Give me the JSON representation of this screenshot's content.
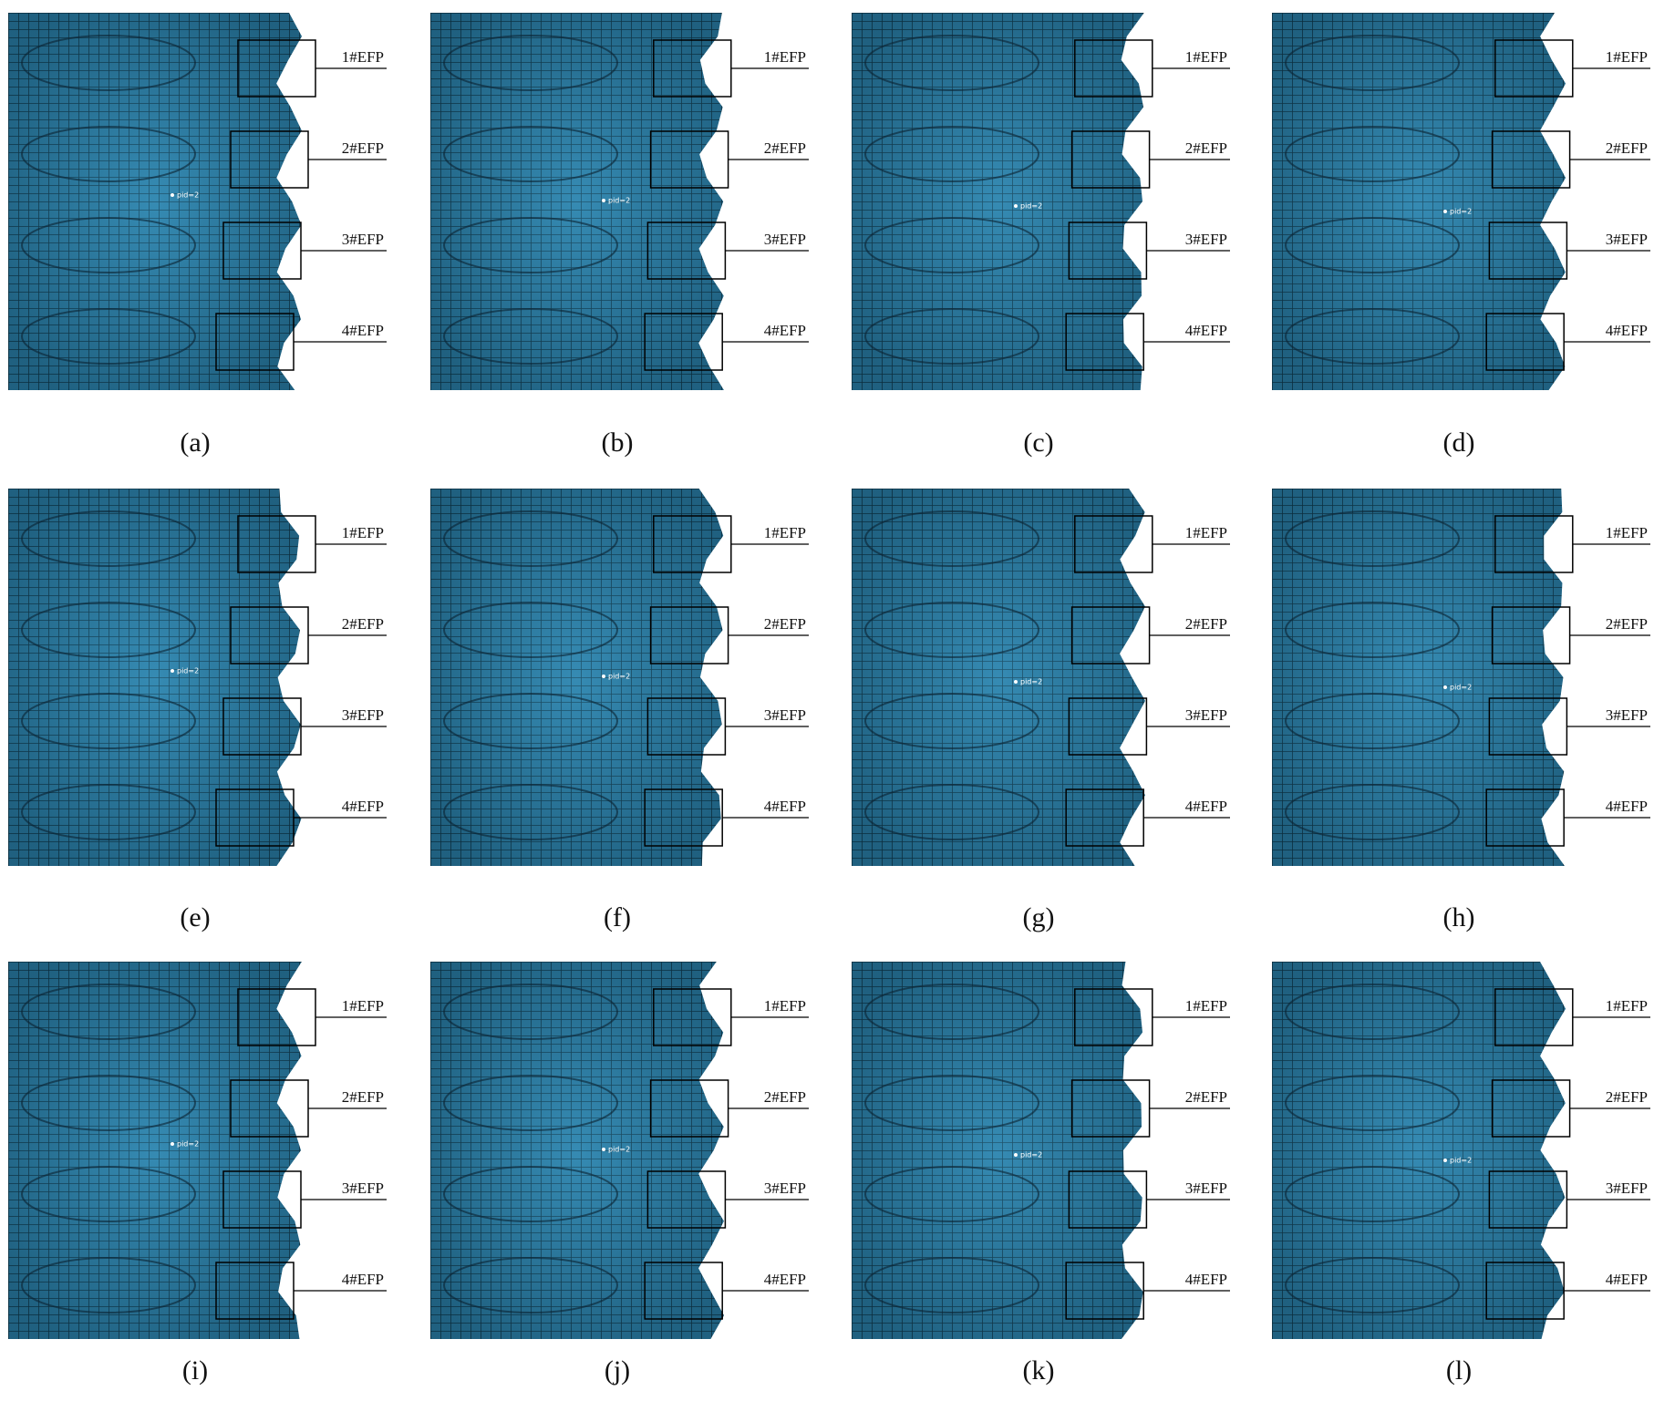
{
  "panels": [
    {
      "caption": "(a)",
      "labels": [
        "1#EFP",
        "2#EFP",
        "3#EFP",
        "4#EFP"
      ],
      "marker": "pid=2"
    },
    {
      "caption": "(b)",
      "labels": [
        "1#EFP",
        "2#EFP",
        "3#EFP",
        "4#EFP"
      ],
      "marker": "pid=2"
    },
    {
      "caption": "(c)",
      "labels": [
        "1#EFP",
        "2#EFP",
        "3#EFP",
        "4#EFP"
      ],
      "marker": "pid=2"
    },
    {
      "caption": "(d)",
      "labels": [
        "1#EFP",
        "2#EFP",
        "3#EFP",
        "4#EFP"
      ],
      "marker": "pid=2"
    },
    {
      "caption": "(e)",
      "labels": [
        "1#EFP",
        "2#EFP",
        "3#EFP",
        "4#EFP"
      ],
      "marker": "pid=2"
    },
    {
      "caption": "(f)",
      "labels": [
        "1#EFP",
        "2#EFP",
        "3#EFP",
        "4#EFP"
      ],
      "marker": "pid=2"
    },
    {
      "caption": "(g)",
      "labels": [
        "1#EFP",
        "2#EFP",
        "3#EFP",
        "4#EFP"
      ],
      "marker": "pid=2"
    },
    {
      "caption": "(h)",
      "labels": [
        "1#EFP",
        "2#EFP",
        "3#EFP",
        "4#EFP"
      ],
      "marker": "pid=2"
    },
    {
      "caption": "(i)",
      "labels": [
        "1#EFP",
        "2#EFP",
        "3#EFP",
        "4#EFP"
      ],
      "marker": "pid=2"
    },
    {
      "caption": "(j)",
      "labels": [
        "1#EFP",
        "2#EFP",
        "3#EFP",
        "4#EFP"
      ],
      "marker": "pid=2"
    },
    {
      "caption": "(k)",
      "labels": [
        "1#EFP",
        "2#EFP",
        "3#EFP",
        "4#EFP"
      ],
      "marker": "pid=2"
    },
    {
      "caption": "(l)",
      "labels": [
        "1#EFP",
        "2#EFP",
        "3#EFP",
        "4#EFP"
      ],
      "marker": "pid=2"
    }
  ]
}
